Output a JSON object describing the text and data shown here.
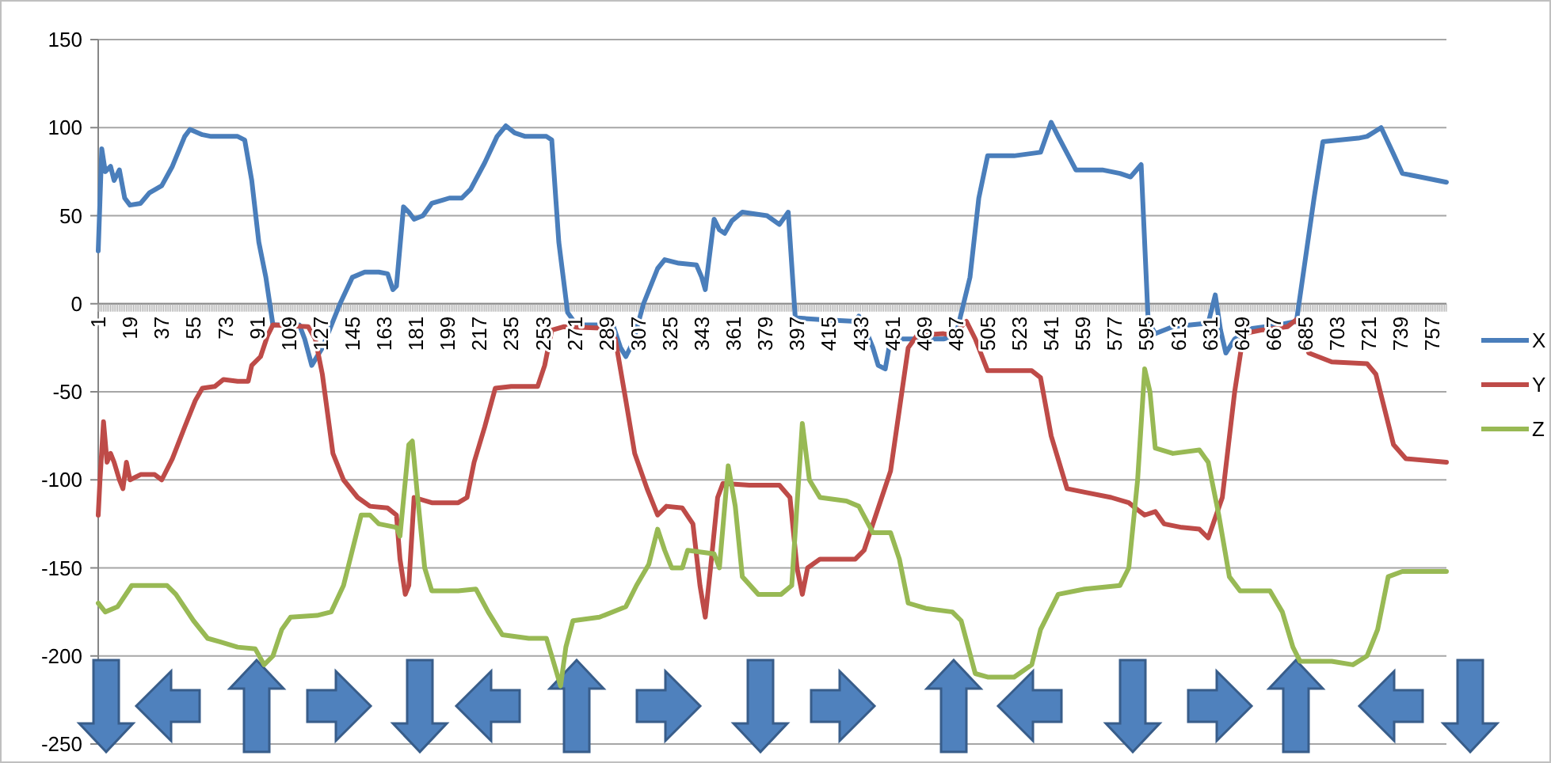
{
  "chart_data": {
    "type": "line",
    "xlim": [
      1,
      765
    ],
    "xticks": [
      1,
      19,
      37,
      55,
      73,
      91,
      109,
      127,
      145,
      163,
      181,
      199,
      217,
      235,
      253,
      271,
      289,
      307,
      325,
      343,
      361,
      379,
      397,
      415,
      433,
      451,
      469,
      487,
      505,
      523,
      541,
      559,
      577,
      595,
      613,
      631,
      649,
      667,
      685,
      703,
      721,
      739,
      757
    ],
    "ylim": [
      -250,
      150
    ],
    "yticks": [
      -250,
      -200,
      -150,
      -100,
      -50,
      0,
      50,
      100,
      150
    ],
    "grid": "y",
    "legend": "right",
    "marker": "none",
    "line_style": "solid",
    "series": [
      {
        "name": "X",
        "color": "#4a7ebb",
        "x": [
          1,
          3,
          5,
          8,
          10,
          13,
          16,
          19,
          25,
          30,
          37,
          43,
          50,
          53,
          60,
          65,
          80,
          84,
          88,
          92,
          96,
          100,
          108,
          115,
          118,
          122,
          128,
          138,
          145,
          152,
          160,
          165,
          168,
          170,
          174,
          177,
          180,
          185,
          190,
          200,
          207,
          212,
          220,
          227,
          232,
          237,
          243,
          255,
          258,
          262,
          267,
          272,
          285,
          293,
          297,
          300,
          304,
          310,
          318,
          322,
          330,
          340,
          343,
          345,
          350,
          353,
          356,
          360,
          366,
          380,
          387,
          392,
          396,
          410,
          430,
          432,
          436,
          440,
          443,
          447,
          450,
          460,
          480,
          487,
          495,
          500,
          505,
          520,
          535,
          541,
          545,
          555,
          570,
          580,
          586,
          592,
          596,
          600,
          610,
          630,
          634,
          637,
          640,
          645,
          655,
          670,
          680,
          685,
          690,
          695,
          705,
          715,
          720,
          728,
          735,
          740,
          750,
          765
        ],
        "values": [
          30,
          88,
          75,
          78,
          70,
          76,
          60,
          56,
          57,
          63,
          67,
          78,
          95,
          99,
          96,
          95,
          95,
          93,
          70,
          35,
          15,
          -12,
          -12,
          -12,
          -20,
          -35,
          -25,
          0,
          15,
          18,
          18,
          17,
          8,
          10,
          55,
          52,
          48,
          50,
          57,
          60,
          60,
          65,
          80,
          95,
          101,
          97,
          95,
          95,
          93,
          35,
          -5,
          -12,
          -12,
          -13,
          -25,
          -30,
          -22,
          0,
          20,
          25,
          23,
          22,
          15,
          8,
          48,
          42,
          40,
          47,
          52,
          50,
          45,
          52,
          -8,
          -9,
          -10,
          -7,
          -15,
          -25,
          -35,
          -37,
          -20,
          -20,
          -20,
          -18,
          15,
          60,
          84,
          84,
          86,
          103,
          95,
          76,
          76,
          74,
          72,
          79,
          -10,
          -17,
          -13,
          -11,
          5,
          -15,
          -28,
          -20,
          -14,
          -12,
          -10,
          25,
          60,
          92,
          93,
          94,
          95,
          100,
          85,
          74,
          72,
          69
        ]
      },
      {
        "name": "Y",
        "color": "#be4b48",
        "x": [
          1,
          2,
          4,
          6,
          8,
          10,
          13,
          15,
          17,
          19,
          25,
          33,
          37,
          43,
          50,
          56,
          60,
          67,
          72,
          80,
          86,
          88,
          93,
          97,
          100,
          120,
          124,
          128,
          134,
          140,
          148,
          155,
          165,
          170,
          172,
          175,
          177,
          180,
          190,
          205,
          210,
          214,
          220,
          226,
          235,
          245,
          250,
          254,
          258,
          265,
          290,
          294,
          300,
          305,
          312,
          318,
          323,
          332,
          338,
          342,
          345,
          348,
          352,
          355,
          370,
          387,
          393,
          397,
          400,
          403,
          410,
          430,
          435,
          445,
          450,
          455,
          460,
          465,
          480,
          485,
          493,
          498,
          505,
          520,
          530,
          535,
          541,
          550,
          560,
          575,
          585,
          590,
          594,
          600,
          605,
          615,
          625,
          630,
          638,
          645,
          650,
          660,
          675,
          680,
          687,
          700,
          720,
          725,
          735,
          742,
          765
        ],
        "values": [
          -120,
          -100,
          -67,
          -90,
          -85,
          -90,
          -100,
          -105,
          -90,
          -100,
          -97,
          -97,
          -100,
          -88,
          -70,
          -55,
          -48,
          -47,
          -43,
          -44,
          -44,
          -35,
          -30,
          -18,
          -12,
          -13,
          -20,
          -40,
          -85,
          -100,
          -110,
          -115,
          -116,
          -120,
          -145,
          -165,
          -160,
          -110,
          -113,
          -113,
          -110,
          -90,
          -70,
          -48,
          -47,
          -47,
          -47,
          -35,
          -15,
          -13,
          -14,
          -20,
          -55,
          -85,
          -105,
          -120,
          -115,
          -116,
          -125,
          -160,
          -178,
          -150,
          -110,
          -102,
          -103,
          -103,
          -110,
          -150,
          -165,
          -150,
          -145,
          -145,
          -140,
          -110,
          -95,
          -60,
          -25,
          -18,
          -17,
          -18,
          -10,
          -20,
          -38,
          -38,
          -38,
          -42,
          -75,
          -105,
          -107,
          -110,
          -113,
          -117,
          -120,
          -118,
          -125,
          -127,
          -128,
          -133,
          -110,
          -50,
          -17,
          -15,
          -13,
          -9,
          -28,
          -33,
          -34,
          -40,
          -80,
          -88,
          -90
        ]
      },
      {
        "name": "Z",
        "color": "#98b954",
        "x": [
          1,
          5,
          12,
          20,
          30,
          40,
          45,
          55,
          63,
          70,
          80,
          90,
          95,
          100,
          105,
          110,
          125,
          133,
          140,
          145,
          150,
          155,
          160,
          170,
          172,
          177,
          179,
          182,
          186,
          190,
          205,
          215,
          222,
          230,
          245,
          255,
          258,
          263,
          266,
          270,
          285,
          300,
          306,
          313,
          318,
          322,
          326,
          332,
          335,
          350,
          353,
          358,
          362,
          366,
          375,
          388,
          394,
          400,
          404,
          410,
          425,
          432,
          440,
          450,
          455,
          460,
          470,
          485,
          490,
          498,
          505,
          520,
          530,
          535,
          540,
          545,
          560,
          580,
          585,
          590,
          594,
          597,
          600,
          610,
          625,
          630,
          636,
          642,
          648,
          665,
          672,
          678,
          682,
          700,
          712,
          720,
          726,
          732,
          740,
          765
        ],
        "values": [
          -170,
          -175,
          -172,
          -160,
          -160,
          -160,
          -165,
          -180,
          -190,
          -192,
          -195,
          -196,
          -205,
          -200,
          -185,
          -178,
          -177,
          -175,
          -160,
          -140,
          -120,
          -120,
          -125,
          -127,
          -132,
          -80,
          -78,
          -110,
          -150,
          -163,
          -163,
          -162,
          -175,
          -188,
          -190,
          -190,
          -200,
          -217,
          -195,
          -180,
          -178,
          -172,
          -160,
          -148,
          -128,
          -140,
          -150,
          -150,
          -140,
          -142,
          -150,
          -92,
          -115,
          -155,
          -165,
          -165,
          -160,
          -68,
          -100,
          -110,
          -112,
          -115,
          -130,
          -130,
          -145,
          -170,
          -173,
          -175,
          -180,
          -210,
          -212,
          -212,
          -205,
          -185,
          -175,
          -165,
          -162,
          -160,
          -150,
          -100,
          -37,
          -50,
          -82,
          -85,
          -83,
          -90,
          -120,
          -155,
          -163,
          -163,
          -175,
          -195,
          -203,
          -203,
          -205,
          -200,
          -185,
          -155,
          -152,
          -152
        ]
      }
    ]
  }
}
